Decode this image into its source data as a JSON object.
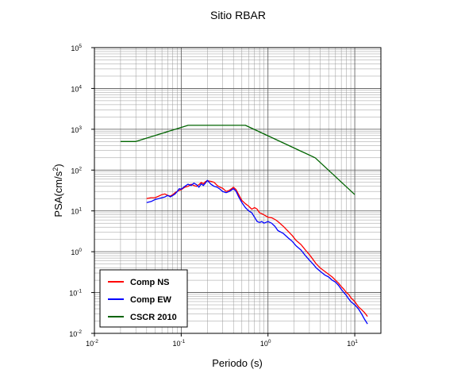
{
  "chart_data": {
    "type": "line",
    "title": "Sitio RBAR",
    "xlabel": "Periodo (s)",
    "ylabel": "PSA(cm/s",
    "ylabel_sup": "2",
    "ylabel_end": ")",
    "xscale": "log",
    "yscale": "log",
    "xlim": [
      0.01,
      20
    ],
    "ylim": [
      0.01,
      100000
    ],
    "grid": true,
    "legend_position": "bottom-left",
    "x_ticks": [
      {
        "base": "10",
        "exp": "-2",
        "value": 0.01
      },
      {
        "base": "10",
        "exp": "-1",
        "value": 0.1
      },
      {
        "base": "10",
        "exp": "0",
        "value": 1
      },
      {
        "base": "10",
        "exp": "1",
        "value": 10
      }
    ],
    "y_ticks": [
      {
        "base": "10",
        "exp": "-2",
        "value": 0.01
      },
      {
        "base": "10",
        "exp": "-1",
        "value": 0.1
      },
      {
        "base": "10",
        "exp": "0",
        "value": 1
      },
      {
        "base": "10",
        "exp": "1",
        "value": 10
      },
      {
        "base": "10",
        "exp": "2",
        "value": 100
      },
      {
        "base": "10",
        "exp": "3",
        "value": 1000
      },
      {
        "base": "10",
        "exp": "4",
        "value": 10000
      },
      {
        "base": "10",
        "exp": "5",
        "value": 100000
      }
    ],
    "series": [
      {
        "name": "Comp NS",
        "color": "#ff0000",
        "x": [
          0.04,
          0.045,
          0.05,
          0.055,
          0.06,
          0.065,
          0.07,
          0.075,
          0.08,
          0.085,
          0.09,
          0.095,
          0.1,
          0.11,
          0.12,
          0.13,
          0.14,
          0.15,
          0.16,
          0.17,
          0.18,
          0.19,
          0.2,
          0.22,
          0.24,
          0.26,
          0.28,
          0.3,
          0.33,
          0.36,
          0.4,
          0.43,
          0.46,
          0.5,
          0.55,
          0.6,
          0.65,
          0.7,
          0.75,
          0.8,
          0.85,
          0.9,
          1.0,
          1.1,
          1.2,
          1.3,
          1.5,
          1.7,
          1.9,
          2.1,
          2.4,
          2.7,
          3.0,
          3.3,
          3.6,
          4.0,
          4.5,
          5.0,
          5.5,
          6.0,
          6.5,
          7.0,
          7.5,
          8.0,
          8.5,
          9.0,
          10.0,
          11.0,
          12.0,
          13.0,
          14.0
        ],
        "y": [
          20,
          21,
          21,
          23,
          25,
          26,
          24,
          23,
          25,
          28,
          30,
          32,
          33,
          38,
          40,
          45,
          42,
          40,
          44,
          50,
          46,
          52,
          55,
          53,
          50,
          42,
          38,
          36,
          30,
          32,
          38,
          33,
          25,
          18,
          15,
          13,
          11,
          12,
          11,
          9,
          8.5,
          8,
          7,
          6.8,
          6.2,
          5.5,
          4.2,
          3.2,
          2.5,
          1.9,
          1.5,
          1.1,
          0.85,
          0.65,
          0.5,
          0.4,
          0.33,
          0.28,
          0.24,
          0.2,
          0.17,
          0.14,
          0.12,
          0.1,
          0.09,
          0.075,
          0.06,
          0.045,
          0.038,
          0.032,
          0.026
        ]
      },
      {
        "name": "Comp EW",
        "color": "#0000ff",
        "x": [
          0.04,
          0.045,
          0.05,
          0.055,
          0.06,
          0.065,
          0.07,
          0.075,
          0.08,
          0.085,
          0.09,
          0.095,
          0.1,
          0.11,
          0.12,
          0.13,
          0.14,
          0.15,
          0.16,
          0.17,
          0.18,
          0.19,
          0.2,
          0.22,
          0.24,
          0.26,
          0.28,
          0.3,
          0.33,
          0.36,
          0.4,
          0.43,
          0.46,
          0.5,
          0.55,
          0.6,
          0.65,
          0.7,
          0.75,
          0.8,
          0.85,
          0.9,
          1.0,
          1.1,
          1.2,
          1.3,
          1.5,
          1.7,
          1.9,
          2.1,
          2.4,
          2.7,
          3.0,
          3.3,
          3.6,
          4.0,
          4.5,
          5.0,
          5.5,
          6.0,
          6.5,
          7.0,
          7.5,
          8.0,
          8.5,
          9.0,
          10.0,
          11.0,
          12.0,
          13.0,
          14.0
        ],
        "y": [
          16,
          17,
          19,
          20,
          21,
          22,
          24,
          22,
          24,
          26,
          30,
          35,
          34,
          40,
          45,
          42,
          48,
          44,
          38,
          46,
          42,
          48,
          56,
          45,
          40,
          38,
          34,
          30,
          28,
          30,
          35,
          30,
          22,
          16,
          12,
          10,
          9,
          7,
          5.5,
          5.2,
          5.5,
          5,
          5.5,
          5,
          4.2,
          3.3,
          2.8,
          2.2,
          1.8,
          1.4,
          1.1,
          0.8,
          0.62,
          0.5,
          0.4,
          0.33,
          0.27,
          0.24,
          0.2,
          0.18,
          0.15,
          0.12,
          0.1,
          0.085,
          0.07,
          0.06,
          0.05,
          0.04,
          0.03,
          0.022,
          0.017
        ]
      },
      {
        "name": "CSCR 2010",
        "color": "#006400",
        "x": [
          0.02,
          0.03,
          0.12,
          0.55,
          3.5,
          10
        ],
        "y": [
          500,
          500,
          1250,
          1250,
          200,
          25
        ]
      }
    ]
  }
}
